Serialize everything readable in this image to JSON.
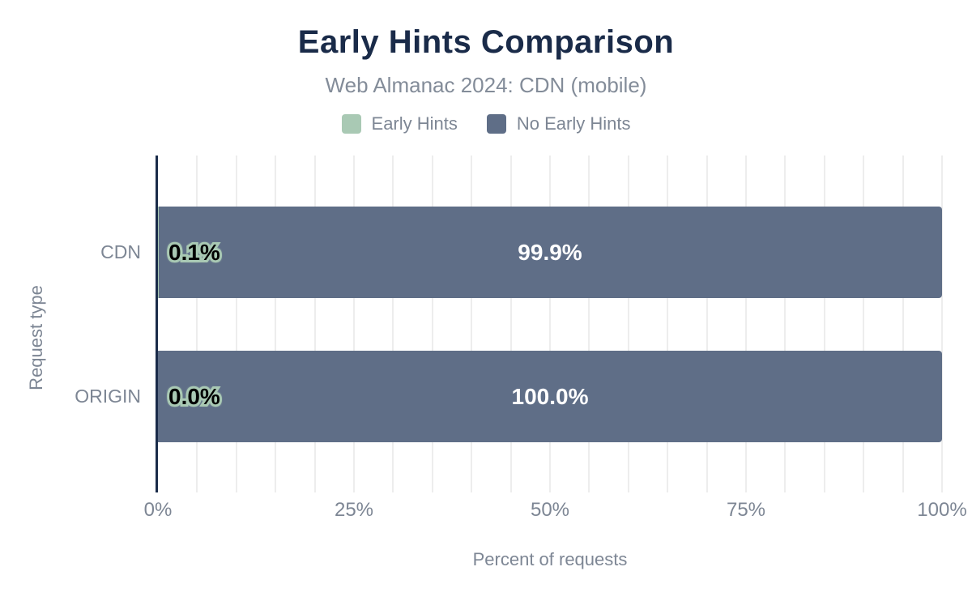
{
  "chart_data": {
    "type": "bar",
    "orientation": "horizontal",
    "stacked": true,
    "title": "Early Hints Comparison",
    "subtitle": "Web Almanac 2024: CDN (mobile)",
    "categories": [
      "CDN",
      "ORIGIN"
    ],
    "series": [
      {
        "name": "Early Hints",
        "color": "#a9c9b4",
        "values": [
          0.1,
          0.0
        ],
        "data_labels": [
          "0.1%",
          "0.0%"
        ]
      },
      {
        "name": "No Early Hints",
        "color": "#5f6e87",
        "values": [
          99.9,
          100.0
        ],
        "data_labels": [
          "99.9%",
          "100.0%"
        ]
      }
    ],
    "xlabel": "Percent of requests",
    "ylabel": "Request type",
    "xlim": [
      0,
      100
    ],
    "x_ticks": [
      "0%",
      "25%",
      "50%",
      "75%",
      "100%"
    ],
    "x_tick_values": [
      0,
      25,
      50,
      75,
      100
    ],
    "gridlines": {
      "minor_interval_pct": 5,
      "color": "#ededed"
    },
    "legend_position": "top"
  },
  "colors": {
    "title": "#1a2b49",
    "axis_line": "#1a2b49",
    "muted_text": "#7d8694",
    "background": "#ffffff",
    "early_hints": "#a9c9b4",
    "no_early_hints": "#5f6e87",
    "value_label_light": "#ffffff",
    "value_label_dark": "#000000",
    "value_label_outline": "#a9c9b4"
  }
}
